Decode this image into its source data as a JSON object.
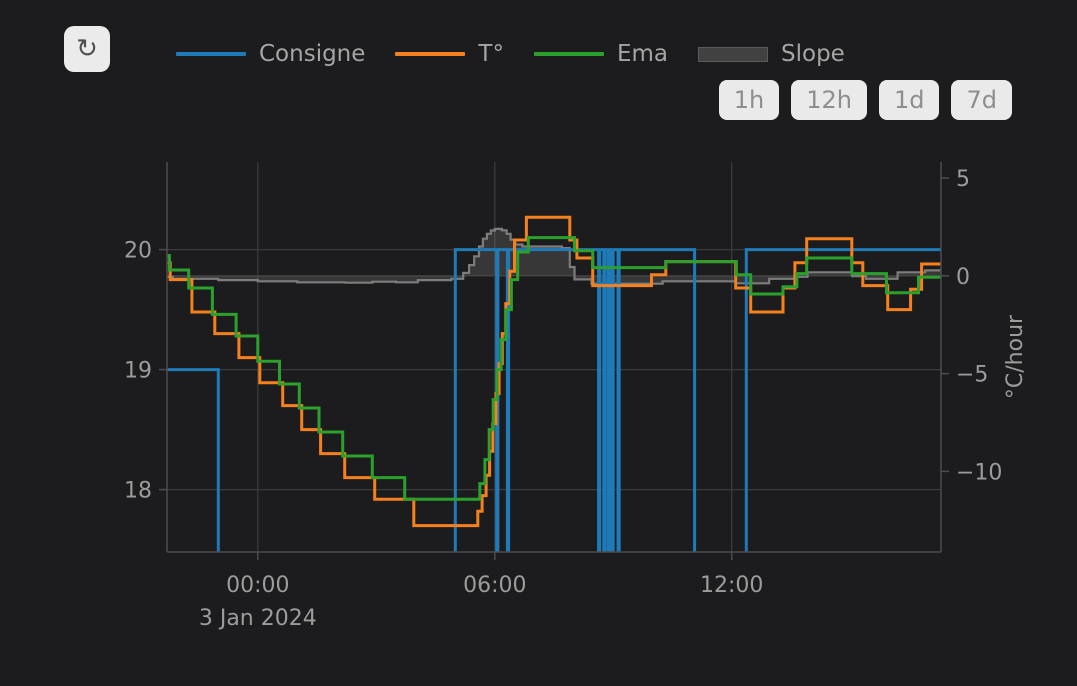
{
  "toolbar": {
    "refresh_icon": "↻"
  },
  "legend": {
    "items": [
      {
        "key": "consigne",
        "label": "Consigne",
        "type": "line",
        "color": "#1f7ab8"
      },
      {
        "key": "temperature",
        "label": "T°",
        "type": "line",
        "color": "#f5801e"
      },
      {
        "key": "ema",
        "label": "Ema",
        "type": "line",
        "color": "#2ca02c"
      },
      {
        "key": "slope",
        "label": "Slope",
        "type": "fill",
        "color": "#414141"
      }
    ]
  },
  "range_buttons": [
    {
      "label": "1h"
    },
    {
      "label": "12h"
    },
    {
      "label": "1d"
    },
    {
      "label": "7d"
    }
  ],
  "colors": {
    "background": "#1c1c1e",
    "grid": "#3b3b3b",
    "axis": "#4d4d4d",
    "tick_text": "#9c9c9c",
    "consigne": "#1f7ab8",
    "temperature": "#f5801e",
    "ema": "#2ca02c",
    "slope_line": "#7d7d7d",
    "slope_fill": "rgba(120,120,120,0.30)"
  },
  "chart_data": {
    "type": "line",
    "x_axis": {
      "min": -2.3,
      "max": 17.3,
      "ticks": [
        {
          "value": 0,
          "label": "00:00"
        },
        {
          "value": 6,
          "label": "06:00"
        },
        {
          "value": 12,
          "label": "12:00"
        }
      ],
      "date_label": "3 Jan 2024"
    },
    "y_axis_temp": {
      "min": 17.48,
      "max": 20.73,
      "ticks": [
        20,
        19,
        18
      ]
    },
    "y_axis_slope": {
      "min": -14.12,
      "max": 5.82,
      "ticks": [
        5,
        0,
        -5,
        -10
      ],
      "title": "°C/hour"
    },
    "series": [
      {
        "name": "Slope",
        "axis": "slope",
        "color": "#7d7d7d",
        "width": 2.2,
        "fill_to_zero": true,
        "fill": "rgba(120,120,120,0.30)",
        "points": [
          [
            -2.3,
            -0.05
          ],
          [
            -2.15,
            -0.15
          ],
          [
            -1.0,
            -0.22
          ],
          [
            0.0,
            -0.28
          ],
          [
            1.0,
            -0.33
          ],
          [
            2.2,
            -0.35
          ],
          [
            2.9,
            -0.3
          ],
          [
            3.5,
            -0.33
          ],
          [
            4.05,
            -0.22
          ],
          [
            4.9,
            -0.15
          ],
          [
            5.2,
            0.15
          ],
          [
            5.35,
            0.55
          ],
          [
            5.48,
            1.0
          ],
          [
            5.6,
            1.5
          ],
          [
            5.7,
            1.9
          ],
          [
            5.8,
            2.15
          ],
          [
            5.9,
            2.32
          ],
          [
            6.0,
            2.4
          ],
          [
            6.18,
            2.33
          ],
          [
            6.3,
            2.15
          ],
          [
            6.4,
            1.85
          ],
          [
            6.52,
            1.6
          ],
          [
            6.7,
            1.5
          ],
          [
            7.7,
            1.42
          ],
          [
            7.9,
            0.45
          ],
          [
            8.02,
            -0.18
          ],
          [
            8.45,
            -0.4
          ],
          [
            10.25,
            -0.28
          ],
          [
            12.1,
            -0.38
          ],
          [
            12.95,
            -0.15
          ],
          [
            13.6,
            -0.05
          ],
          [
            13.92,
            0.18
          ],
          [
            15.05,
            -0.02
          ],
          [
            15.4,
            -0.15
          ],
          [
            16.2,
            0.18
          ],
          [
            16.9,
            0.28
          ]
        ]
      },
      {
        "name": "Consigne",
        "axis": "temp",
        "color": "#1f7ab8",
        "width": 3,
        "points": [
          [
            -2.3,
            19
          ],
          [
            -1.0,
            17
          ],
          [
            5.0,
            20
          ],
          [
            6.05,
            17
          ],
          [
            6.08,
            20
          ],
          [
            6.32,
            17
          ],
          [
            6.35,
            20
          ],
          [
            8.63,
            17
          ],
          [
            8.66,
            20
          ],
          [
            8.76,
            17
          ],
          [
            8.79,
            20
          ],
          [
            8.87,
            17
          ],
          [
            8.9,
            20
          ],
          [
            8.97,
            17
          ],
          [
            9.0,
            20
          ],
          [
            9.12,
            17
          ],
          [
            9.15,
            20
          ],
          [
            11.06,
            17
          ],
          [
            12.37,
            20
          ]
        ]
      },
      {
        "name": "T°",
        "axis": "temp",
        "color": "#f5801e",
        "width": 3,
        "points": [
          [
            -2.3,
            19.89
          ],
          [
            -2.22,
            19.75
          ],
          [
            -1.67,
            19.48
          ],
          [
            -1.09,
            19.3
          ],
          [
            -0.48,
            19.1
          ],
          [
            0.05,
            18.89
          ],
          [
            0.63,
            18.7
          ],
          [
            1.11,
            18.5
          ],
          [
            1.59,
            18.3
          ],
          [
            2.2,
            18.1
          ],
          [
            2.96,
            17.92
          ],
          [
            3.95,
            17.7
          ],
          [
            5.57,
            17.82
          ],
          [
            5.68,
            17.95
          ],
          [
            5.78,
            18.12
          ],
          [
            5.87,
            18.32
          ],
          [
            5.95,
            18.55
          ],
          [
            6.03,
            18.8
          ],
          [
            6.11,
            19.05
          ],
          [
            6.19,
            19.3
          ],
          [
            6.28,
            19.55
          ],
          [
            6.38,
            19.82
          ],
          [
            6.5,
            20.08
          ],
          [
            6.8,
            20.27
          ],
          [
            7.9,
            20.08
          ],
          [
            8.08,
            19.93
          ],
          [
            8.48,
            19.7
          ],
          [
            9.97,
            19.79
          ],
          [
            10.33,
            19.9
          ],
          [
            12.1,
            19.68
          ],
          [
            12.48,
            19.48
          ],
          [
            13.3,
            19.68
          ],
          [
            13.6,
            19.89
          ],
          [
            13.9,
            20.09
          ],
          [
            15.04,
            19.89
          ],
          [
            15.32,
            19.7
          ],
          [
            15.95,
            19.5
          ],
          [
            16.53,
            19.67
          ],
          [
            16.81,
            19.88
          ]
        ]
      },
      {
        "name": "Ema",
        "axis": "temp",
        "color": "#2ca02c",
        "width": 3,
        "points": [
          [
            -2.3,
            19.95
          ],
          [
            -2.24,
            19.83
          ],
          [
            -1.75,
            19.68
          ],
          [
            -1.15,
            19.46
          ],
          [
            -0.55,
            19.28
          ],
          [
            0.0,
            19.07
          ],
          [
            0.55,
            18.88
          ],
          [
            1.05,
            18.68
          ],
          [
            1.55,
            18.48
          ],
          [
            2.15,
            18.28
          ],
          [
            2.9,
            18.1
          ],
          [
            3.72,
            17.92
          ],
          [
            5.62,
            18.05
          ],
          [
            5.75,
            18.25
          ],
          [
            5.86,
            18.5
          ],
          [
            5.96,
            18.75
          ],
          [
            6.06,
            19.0
          ],
          [
            6.16,
            19.25
          ],
          [
            6.28,
            19.5
          ],
          [
            6.42,
            19.75
          ],
          [
            6.58,
            19.98
          ],
          [
            6.85,
            20.1
          ],
          [
            8.02,
            19.99
          ],
          [
            8.48,
            19.85
          ],
          [
            10.33,
            19.9
          ],
          [
            12.12,
            19.79
          ],
          [
            12.48,
            19.63
          ],
          [
            13.3,
            19.69
          ],
          [
            13.65,
            19.8
          ],
          [
            13.9,
            19.93
          ],
          [
            15.04,
            19.8
          ],
          [
            15.92,
            19.64
          ],
          [
            16.73,
            19.77
          ]
        ]
      }
    ]
  }
}
